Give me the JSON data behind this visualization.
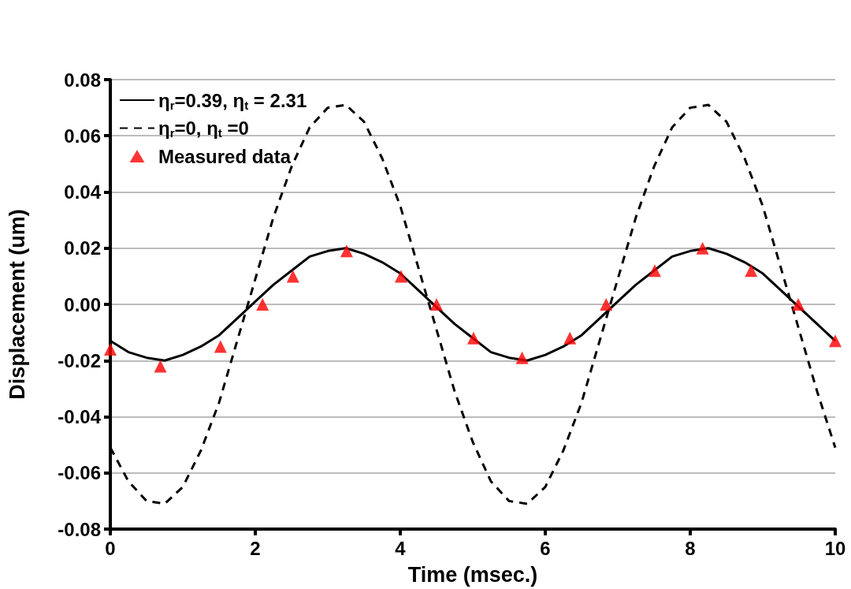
{
  "chart_data": {
    "type": "line",
    "xlabel": "Time (msec.)",
    "ylabel": "Displacement (um)",
    "xlim": [
      0,
      10
    ],
    "xticks": [
      0,
      2,
      4,
      6,
      8,
      10
    ],
    "ylim": [
      -0.08,
      0.08
    ],
    "yticks": [
      -0.08,
      -0.06,
      -0.04,
      -0.02,
      {
        "value": 0,
        "label": "0.00"
      },
      0.02,
      0.04,
      0.06,
      0.08
    ],
    "grid": "y",
    "legend": "top left",
    "series": [
      {
        "name": "η$_{r}$=0.39, η$_{t}$ = 2.31",
        "color": "#000000",
        "line_style": "solid",
        "marker": "none",
        "x": [
          0,
          0.25,
          0.5,
          0.75,
          1,
          1.25,
          1.5,
          1.75,
          2,
          2.25,
          2.5,
          2.75,
          3,
          3.25,
          3.5,
          3.75,
          4,
          4.25,
          4.5,
          4.75,
          5,
          5.25,
          5.5,
          5.75,
          6,
          6.25,
          6.5,
          6.75,
          7,
          7.25,
          7.5,
          7.75,
          8,
          8.25,
          8.5,
          8.75,
          9,
          9.25,
          9.5,
          9.75,
          10
        ],
        "values": [
          -0.013,
          -0.017,
          -0.019,
          -0.02,
          -0.018,
          -0.015,
          -0.011,
          -0.005,
          0.001,
          0.007,
          0.012,
          0.017,
          0.019,
          0.02,
          0.018,
          0.015,
          0.011,
          0.005,
          -0.001,
          -0.007,
          -0.012,
          -0.017,
          -0.019,
          -0.02,
          -0.018,
          -0.015,
          -0.011,
          -0.005,
          0.001,
          0.007,
          0.012,
          0.017,
          0.019,
          0.02,
          0.018,
          0.015,
          0.011,
          0.005,
          -0.001,
          -0.007,
          -0.013
        ]
      },
      {
        "name": "η$_{r}$=0, η$_{t}$ =0",
        "color": "#000000",
        "line_style": "dashed",
        "marker": "none",
        "x": [
          0,
          0.25,
          0.5,
          0.75,
          1,
          1.25,
          1.5,
          1.75,
          2,
          2.25,
          2.5,
          2.75,
          3,
          3.25,
          3.5,
          3.75,
          4,
          4.25,
          4.5,
          4.75,
          5,
          5.25,
          5.5,
          5.75,
          6,
          6.25,
          6.5,
          6.75,
          7,
          7.25,
          7.5,
          7.75,
          8,
          8.25,
          8.5,
          8.75,
          9,
          9.25,
          9.5,
          9.75,
          10
        ],
        "values": [
          -0.051,
          -0.063,
          -0.07,
          -0.071,
          -0.065,
          -0.052,
          -0.035,
          -0.013,
          0.009,
          0.031,
          0.049,
          0.063,
          0.07,
          0.071,
          0.065,
          0.052,
          0.035,
          0.013,
          -0.009,
          -0.031,
          -0.049,
          -0.063,
          -0.07,
          -0.071,
          -0.065,
          -0.052,
          -0.035,
          -0.013,
          0.009,
          0.031,
          0.049,
          0.063,
          0.07,
          0.071,
          0.065,
          0.052,
          0.035,
          0.013,
          -0.009,
          -0.031,
          -0.051
        ]
      },
      {
        "name": "Measured data",
        "type": "scatter",
        "color": "#ff0000",
        "marker": "triangle",
        "x": [
          0,
          0.69,
          1.52,
          2.1,
          2.52,
          3.26,
          4.01,
          4.5,
          5.01,
          5.68,
          6.34,
          6.84,
          7.51,
          8.17,
          8.84,
          9.49,
          10
        ],
        "values": [
          -0.016,
          -0.022,
          -0.015,
          0,
          0.01,
          0.019,
          0.01,
          0,
          -0.012,
          -0.019,
          -0.012,
          0,
          0.012,
          0.02,
          0.012,
          0,
          -0.013
        ]
      }
    ]
  }
}
